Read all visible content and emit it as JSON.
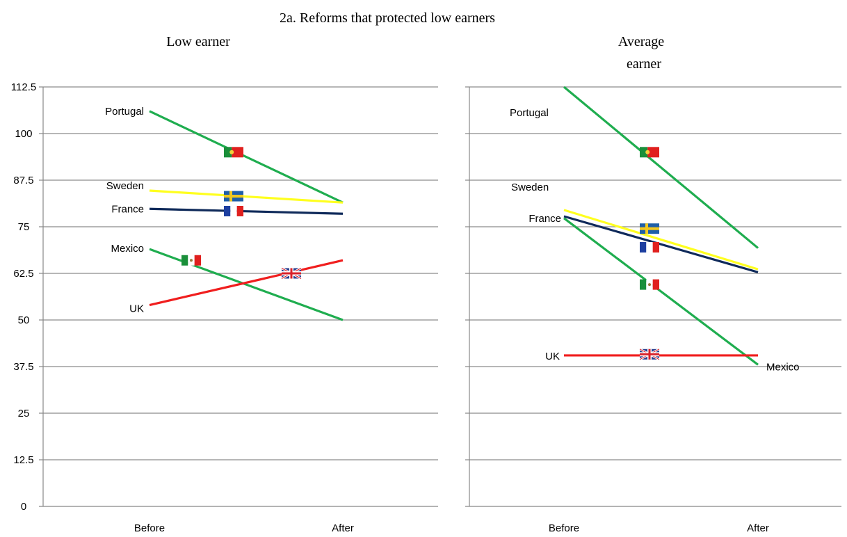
{
  "figure": {
    "title": "2a.  Reforms that protected low earners"
  },
  "colors": {
    "Portugal": "#1fad4f",
    "Mexico": "#1fad4f",
    "Sweden": "#ffff1f",
    "France": "#0f2a5a",
    "UK": "#f01e1e",
    "axis": "#888888",
    "grid": "#8c8c8c",
    "text": "#000000"
  },
  "chart_data": [
    {
      "type": "line",
      "title": "Low earner",
      "categories": [
        "Before",
        "After"
      ],
      "ylim": [
        0,
        112.5
      ],
      "yticks": [
        "0",
        "12.5",
        "25",
        "37.5",
        "50",
        "62.5",
        "75",
        "87.5",
        "100",
        "112.5"
      ],
      "grid": true,
      "series": [
        {
          "name": "Portugal",
          "values": [
            106,
            81.5
          ],
          "flag": "portugal-flag-icon"
        },
        {
          "name": "Sweden",
          "values": [
            84.7,
            81.5
          ],
          "flag": "sweden-flag-icon"
        },
        {
          "name": "France",
          "values": [
            79.8,
            78.5
          ],
          "flag": "france-flag-icon"
        },
        {
          "name": "Mexico",
          "values": [
            69,
            50
          ],
          "flag": "mexico-flag-icon"
        },
        {
          "name": "UK",
          "values": [
            54,
            66
          ],
          "flag": "uk-flag-icon"
        }
      ]
    },
    {
      "type": "line",
      "title": "Average earner",
      "title_lines": [
        "Average",
        "earner"
      ],
      "categories": [
        "Before",
        "After"
      ],
      "ylim": [
        0,
        112.5
      ],
      "grid": true,
      "series": [
        {
          "name": "Portugal",
          "values": [
            112.5,
            69.3
          ],
          "flag": "portugal-flag-icon"
        },
        {
          "name": "Sweden",
          "values": [
            79.5,
            63.6
          ],
          "flag": "sweden-flag-icon"
        },
        {
          "name": "France",
          "values": [
            77.8,
            62.8
          ],
          "flag": "france-flag-icon"
        },
        {
          "name": "Mexico",
          "values": [
            77.3,
            38
          ],
          "flag": "mexico-flag-icon"
        },
        {
          "name": "UK",
          "values": [
            40.5,
            40.5
          ],
          "flag": "uk-flag-icon"
        }
      ]
    }
  ]
}
